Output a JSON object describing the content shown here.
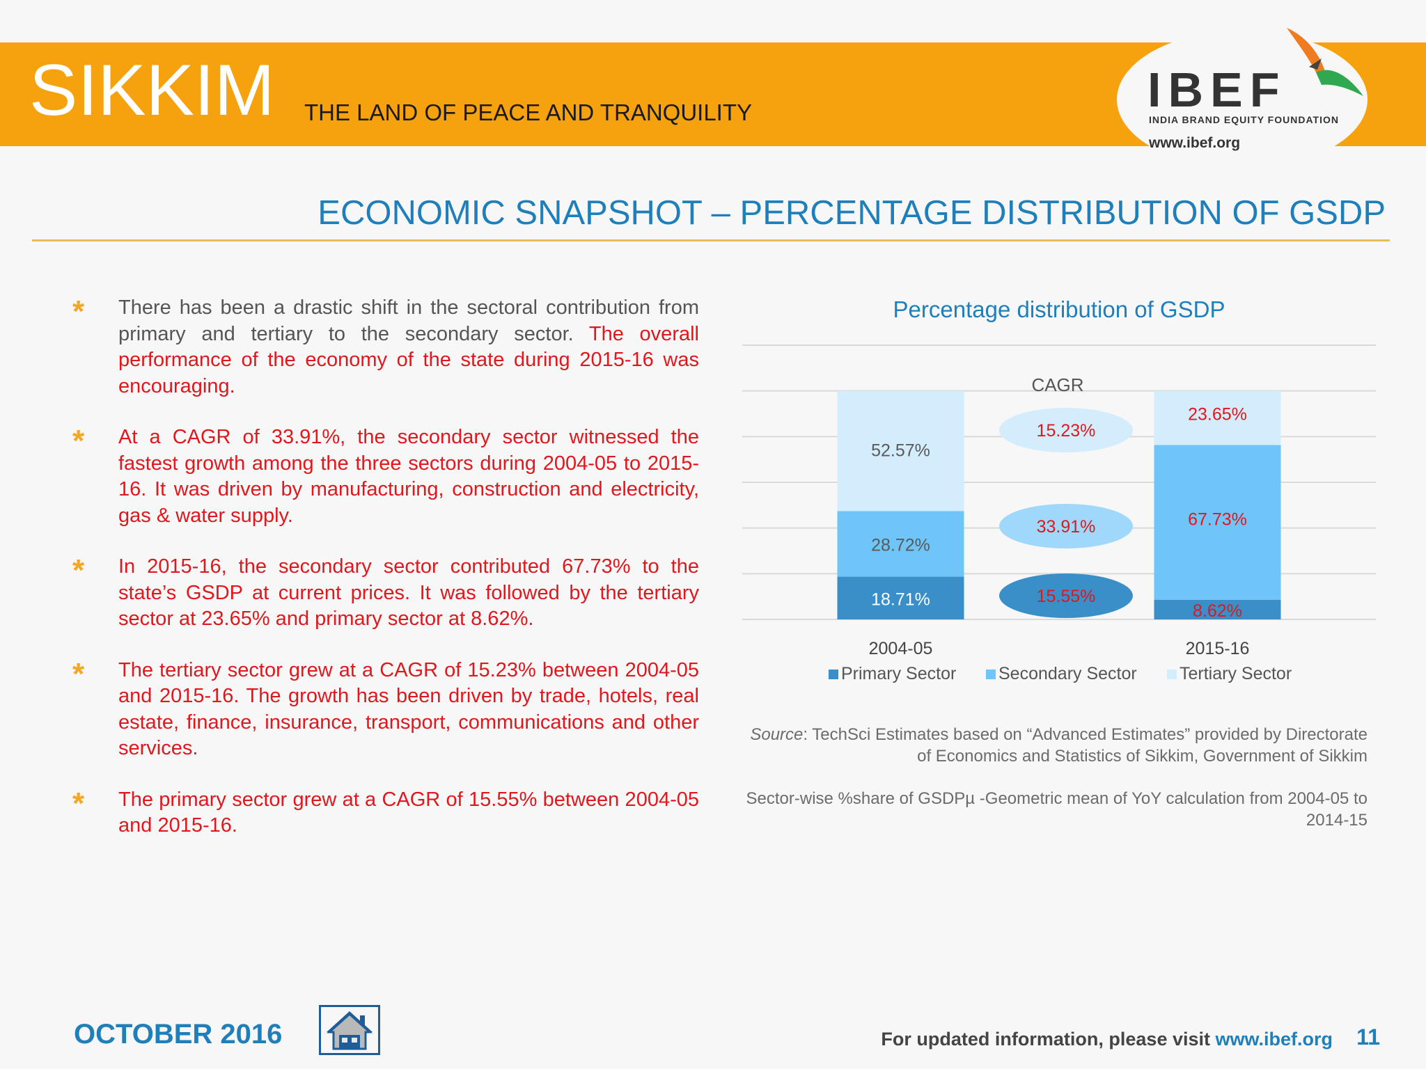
{
  "header": {
    "state": "SIKKIM",
    "tagline": "THE LAND OF PEACE AND TRANQUILITY",
    "logo_text": "IBEF",
    "logo_subtitle": "INDIA BRAND EQUITY FOUNDATION",
    "logo_url": "www.ibef.org"
  },
  "page_title": "ECONOMIC SNAPSHOT – PERCENTAGE DISTRIBUTION OF GSDP",
  "bullets": [
    {
      "grey": "There has been a drastic shift in the sectoral contribution from primary and tertiary to the secondary sector.",
      "red": " The overall performance of the economy of the state during 2015-16 was encouraging."
    },
    {
      "grey": "",
      "red": "At a CAGR of 33.91%, the secondary sector witnessed the fastest growth among the three sectors during 2004-05 to 2015-16. It was driven by manufacturing, construction and electricity, gas & water supply."
    },
    {
      "grey": "",
      "red": "In 2015-16, the secondary sector contributed 67.73% to the state’s GSDP at current prices. It was followed by the tertiary sector at 23.65% and primary sector at 8.62%."
    },
    {
      "grey": "",
      "red": "The tertiary sector grew at a CAGR of 15.23% between 2004-05 and 2015-16. The growth has been driven by trade, hotels, real estate, finance, insurance, transport, communications and other services."
    },
    {
      "grey": "",
      "red": "The primary sector grew at a CAGR of 15.55% between 2004-05 and 2015-16."
    }
  ],
  "chart_data": {
    "type": "bar",
    "stacked": true,
    "title": "Percentage distribution of GSDP",
    "categories": [
      "2004-05",
      "2015-16"
    ],
    "series": [
      {
        "name": "Primary Sector",
        "values": [
          18.71,
          8.62
        ],
        "labels": [
          "18.71%",
          "8.62%"
        ],
        "color": "#3a8fc9",
        "cagr": "15.55%"
      },
      {
        "name": "Secondary Sector",
        "values": [
          28.72,
          67.73
        ],
        "labels": [
          "28.72%",
          "67.73%"
        ],
        "color": "#6fc5f7",
        "cagr": "33.91%"
      },
      {
        "name": "Tertiary Sector",
        "values": [
          52.57,
          23.65
        ],
        "labels": [
          "52.57%",
          "23.65%"
        ],
        "color": "#d4edfd",
        "cagr": "15.23%"
      }
    ],
    "cagr_label": "CAGR",
    "ylim": [
      0,
      120
    ],
    "grid": true,
    "legend_position": "bottom"
  },
  "source": {
    "label": "Source",
    "text": ": TechSci Estimates based on “Advanced Estimates” provided by Directorate of Economics and Statistics of Sikkim, Government of Sikkim",
    "note": "Sector-wise %share of GSDPµ -Geometric mean of YoY calculation from 2004-05 to 2014-15"
  },
  "footer": {
    "date": "OCTOBER 2016",
    "visit_text": "For updated information, please visit ",
    "visit_url": "www.ibef.org",
    "page_number": "11"
  },
  "colors": {
    "banner": "#f6a10e",
    "accent_blue": "#1f7fba",
    "text_red": "#e0171d",
    "star": "#f5a623"
  }
}
